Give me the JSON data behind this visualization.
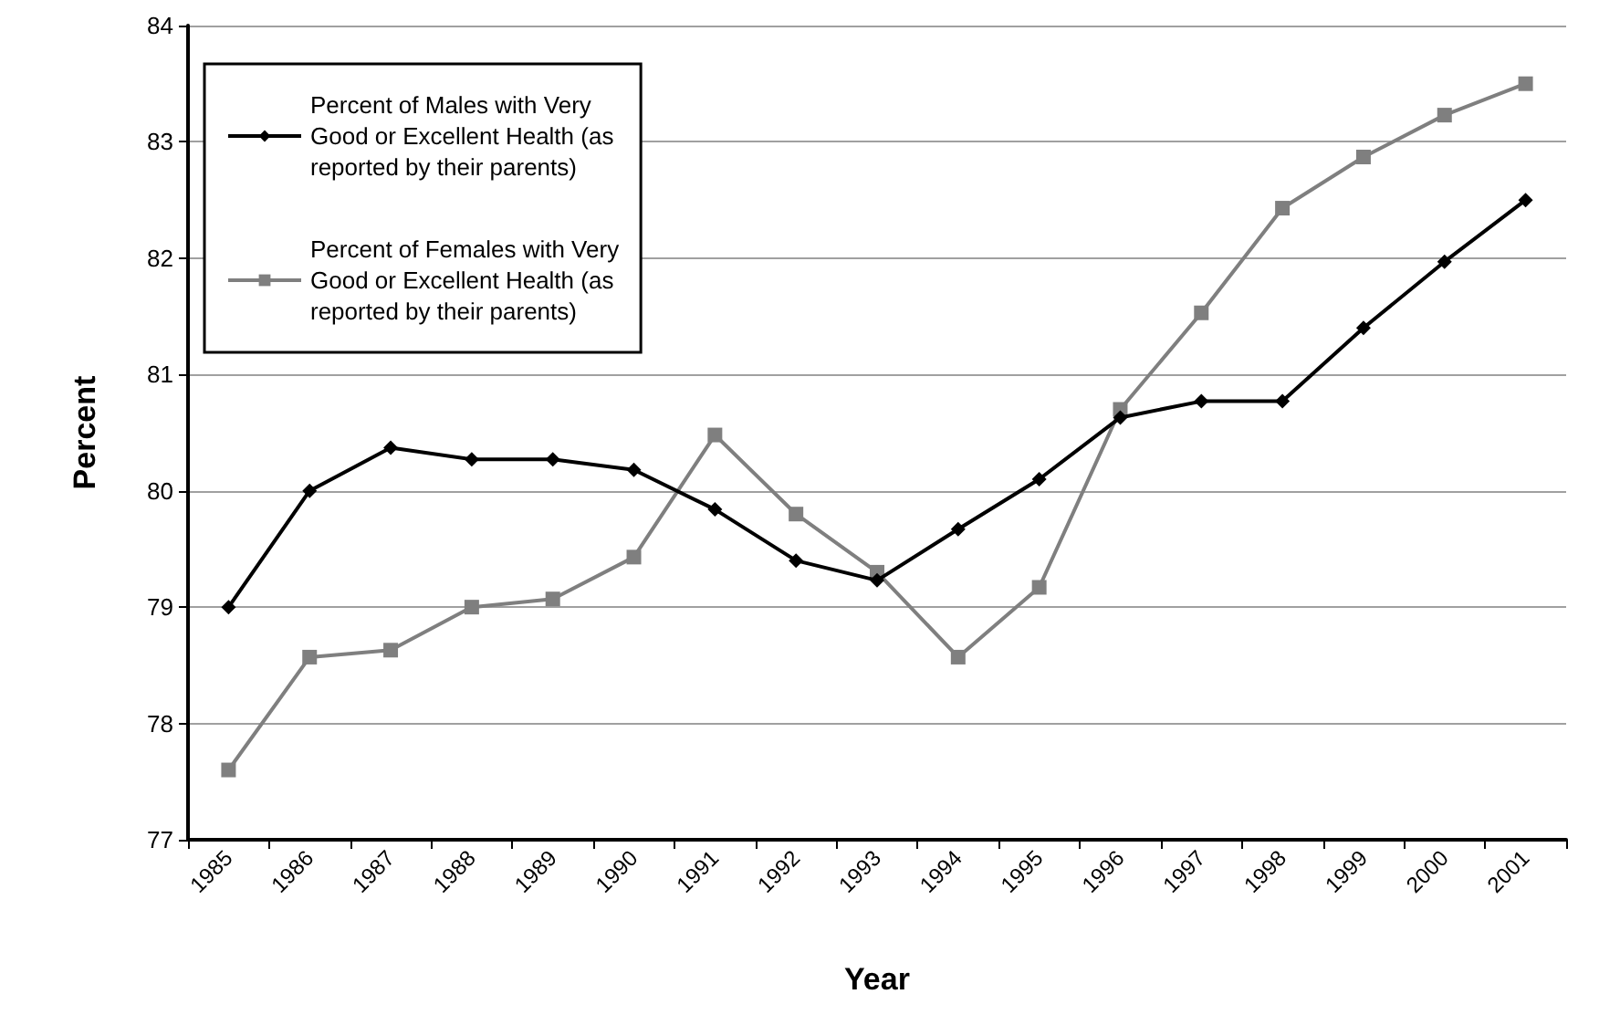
{
  "chart_data": {
    "type": "line",
    "xlabel": "Year",
    "ylabel": "Percent",
    "categories": [
      "1985",
      "1986",
      "1987",
      "1988",
      "1989",
      "1990",
      "1991",
      "1992",
      "1993",
      "1994",
      "1995",
      "1996",
      "1997",
      "1998",
      "1999",
      "2000",
      "2001"
    ],
    "series": [
      {
        "name": "Percent of Males with Very Good or Excellent Health (as reported by their parents)",
        "color": "#000000",
        "marker": "diamond",
        "values": [
          79.0,
          80.0,
          80.37,
          80.27,
          80.27,
          80.18,
          79.84,
          79.4,
          79.23,
          79.67,
          80.1,
          80.63,
          80.77,
          80.77,
          81.4,
          81.97,
          82.5
        ]
      },
      {
        "name": "Percent of Females with Very Good or Excellent Health (as reported by their parents)",
        "color": "#7f7f7f",
        "marker": "square",
        "values": [
          77.6,
          78.57,
          78.63,
          79.0,
          79.07,
          79.43,
          80.48,
          79.8,
          79.3,
          78.57,
          79.17,
          80.7,
          81.53,
          82.43,
          82.87,
          83.23,
          83.5
        ]
      }
    ],
    "ylim": [
      77,
      84
    ],
    "yticks": [
      77,
      78,
      79,
      80,
      81,
      82,
      83,
      84
    ],
    "grid": "y",
    "legend": "top left"
  }
}
